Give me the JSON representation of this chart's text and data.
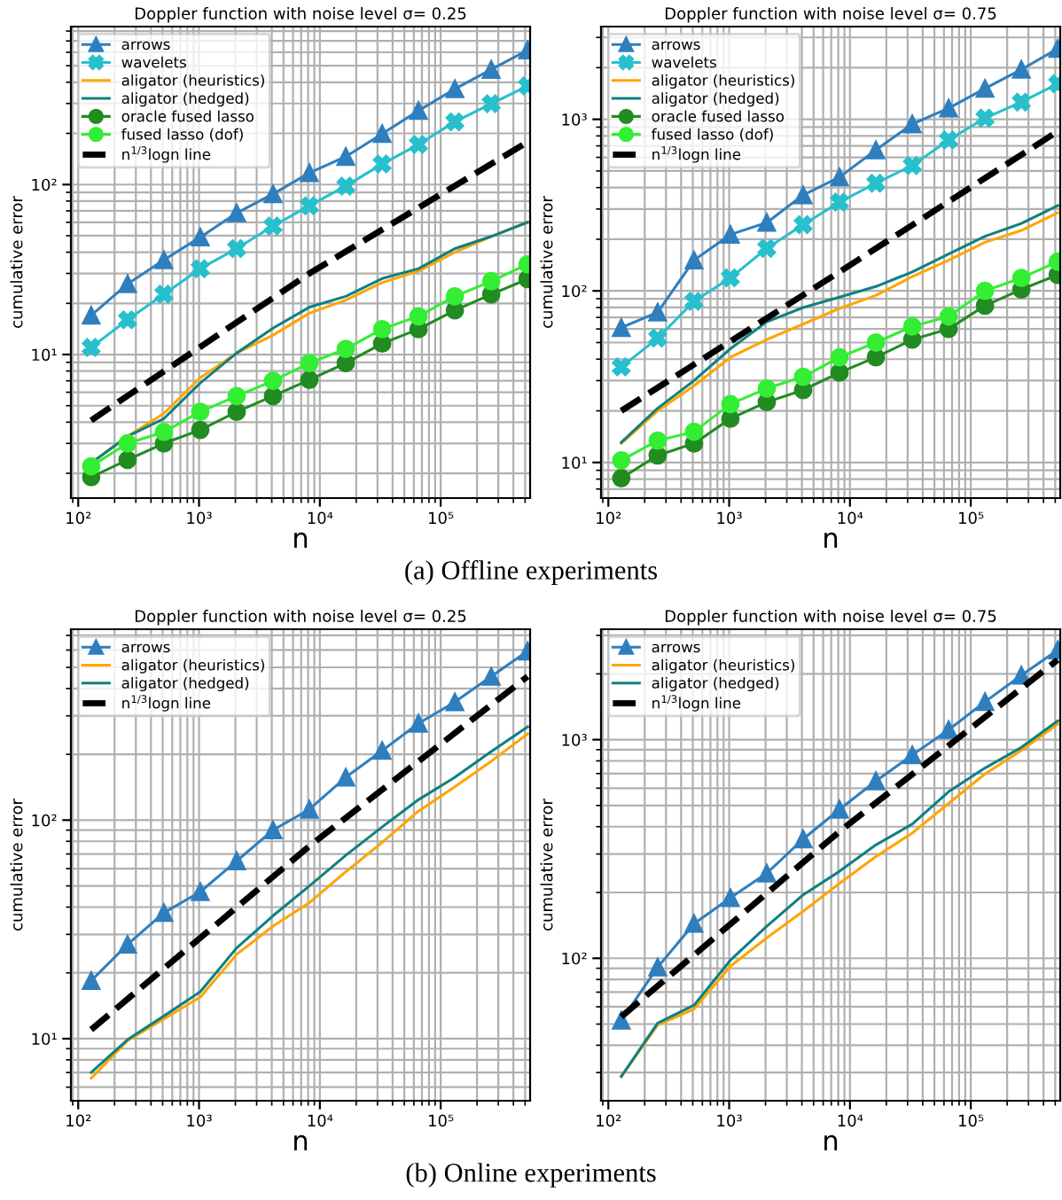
{
  "chart_data": [
    {
      "type": "line",
      "title": "Doppler function with noise level σ= 0.25",
      "xlabel": "n",
      "ylabel": "cumulative error",
      "log": "xy",
      "grid": true,
      "legend": "top left",
      "x": [
        128,
        256,
        512,
        1024,
        2048,
        4096,
        8192,
        16384,
        32768,
        65536,
        131072,
        262144,
        524288
      ],
      "xlim": [
        87,
        550000
      ],
      "ylim": [
        1.43,
        850
      ],
      "xticks": [
        {
          "value": 100,
          "label": "10²"
        },
        {
          "value": 1000,
          "label": "10³"
        },
        {
          "value": 10000,
          "label": "10⁴"
        },
        {
          "value": 100000,
          "label": "10⁵"
        }
      ],
      "yticks": [
        {
          "value": 10,
          "label": "10¹"
        },
        {
          "value": 100,
          "label": "10²"
        }
      ],
      "annotations": [
        "(a) Offline experiments"
      ],
      "series": [
        {
          "name": "arrows",
          "color": "#2f7fbf",
          "marker": "triangle",
          "line_style": "solid",
          "values": [
            17,
            26,
            36,
            49,
            68,
            88,
            117,
            146,
            199,
            272,
            365,
            475,
            617
          ]
        },
        {
          "name": "wavelets",
          "color": "#27c0cc",
          "marker": "cross",
          "line_style": "solid",
          "values": [
            11,
            16,
            22.6,
            32,
            42,
            57,
            75,
            98,
            132,
            172,
            234,
            299,
            380
          ]
        },
        {
          "name": "aligator (heuristics)",
          "color": "#ffa500",
          "marker": "none",
          "line_style": "solid",
          "values": [
            2.3,
            3.3,
            4.5,
            7.3,
            10.2,
            13,
            17.5,
            20.9,
            26.5,
            31,
            40,
            49.5,
            60
          ]
        },
        {
          "name": "aligator (hedged)",
          "color": "#108080",
          "marker": "none",
          "line_style": "solid",
          "values": [
            2.3,
            3.3,
            4.2,
            6.8,
            10.2,
            14.3,
            19,
            22,
            28,
            32,
            42,
            49.5,
            60
          ]
        },
        {
          "name": "oracle fused lasso",
          "color": "#228b22",
          "marker": "circle",
          "line_style": "solid",
          "values": [
            1.9,
            2.4,
            3.0,
            3.6,
            4.6,
            5.7,
            7.1,
            8.9,
            11.6,
            14.1,
            18.2,
            22.6,
            27.8
          ]
        },
        {
          "name": "fused lasso (dof)",
          "color": "#33ee33",
          "marker": "circle",
          "line_style": "solid",
          "values": [
            2.2,
            3.0,
            3.5,
            4.6,
            5.7,
            7.0,
            8.9,
            10.8,
            14.1,
            16.8,
            22,
            27,
            34
          ]
        },
        {
          "name": "n$^{1/3}$logn line",
          "color": "#000000",
          "marker": "none",
          "line_style": "dashed",
          "x": [
            128,
            8192,
            524288
          ],
          "values": [
            4.1,
            30,
            178
          ]
        }
      ]
    },
    {
      "type": "line",
      "title": "Doppler function with noise level σ= 0.75",
      "xlabel": "n",
      "ylabel": "cumulative error",
      "log": "xy",
      "grid": true,
      "legend": "top left",
      "x": [
        128,
        256,
        512,
        1024,
        2048,
        4096,
        8192,
        16384,
        32768,
        65536,
        131072,
        262144,
        524288
      ],
      "xlim": [
        87,
        550000
      ],
      "ylim": [
        6.2,
        3470
      ],
      "xticks": [
        {
          "value": 100,
          "label": "10²"
        },
        {
          "value": 1000,
          "label": "10³"
        },
        {
          "value": 10000,
          "label": "10⁴"
        },
        {
          "value": 100000,
          "label": "10⁵"
        }
      ],
      "yticks": [
        {
          "value": 10,
          "label": "10¹"
        },
        {
          "value": 100,
          "label": "10²"
        },
        {
          "value": 1000,
          "label": "10³"
        }
      ],
      "series": [
        {
          "name": "arrows",
          "color": "#2f7fbf",
          "marker": "triangle",
          "line_style": "solid",
          "values": [
            61,
            75,
            151,
            213,
            250,
            362,
            460,
            662,
            938,
            1160,
            1510,
            1950,
            2580
          ]
        },
        {
          "name": "wavelets",
          "color": "#27c0cc",
          "marker": "cross",
          "line_style": "solid",
          "values": [
            36,
            53,
            87,
            119,
            177,
            243,
            329,
            424,
            538,
            758,
            1016,
            1260,
            1610
          ]
        },
        {
          "name": "aligator (heuristics)",
          "color": "#ffa500",
          "marker": "none",
          "line_style": "solid",
          "values": [
            12.9,
            20,
            28,
            41,
            52,
            64,
            79,
            94,
            121,
            151,
            192,
            225,
            285
          ]
        },
        {
          "name": "aligator (hedged)",
          "color": "#108080",
          "marker": "none",
          "line_style": "solid",
          "values": [
            13.1,
            20.7,
            30,
            46,
            66,
            80,
            92,
            106,
            129,
            164,
            208,
            247,
            314
          ]
        },
        {
          "name": "oracle fused lasso",
          "color": "#228b22",
          "marker": "circle",
          "line_style": "solid",
          "values": [
            8.1,
            11,
            12.9,
            18,
            22.5,
            26.4,
            33.4,
            41,
            52,
            60,
            82,
            102,
            124
          ]
        },
        {
          "name": "fused lasso (dof)",
          "color": "#33ee33",
          "marker": "circle",
          "line_style": "solid",
          "values": [
            10.3,
            13.4,
            15.1,
            21.9,
            27,
            31.6,
            41,
            50,
            62,
            71,
            100,
            119,
            148
          ]
        },
        {
          "name": "n$^{1/3}$logn line",
          "color": "#000000",
          "marker": "none",
          "line_style": "dashed",
          "x": [
            128,
            8192,
            524288
          ],
          "values": [
            20,
            129,
            851
          ]
        }
      ]
    },
    {
      "type": "line",
      "title": "Doppler function with noise level σ= 0.25",
      "xlabel": "n",
      "ylabel": "cumulative error",
      "log": "xy",
      "grid": true,
      "legend": "top left",
      "x": [
        128,
        256,
        512,
        1024,
        2048,
        4096,
        8192,
        16384,
        32768,
        65536,
        131072,
        262144,
        524288
      ],
      "xlim": [
        87,
        550000
      ],
      "ylim": [
        5.2,
        747
      ],
      "xticks": [
        {
          "value": 100,
          "label": "10²"
        },
        {
          "value": 1000,
          "label": "10³"
        },
        {
          "value": 10000,
          "label": "10⁴"
        },
        {
          "value": 100000,
          "label": "10⁵"
        }
      ],
      "yticks": [
        {
          "value": 10,
          "label": "10¹"
        },
        {
          "value": 100,
          "label": "10²"
        }
      ],
      "annotations": [
        "(b) Online experiments"
      ],
      "series": [
        {
          "name": "arrows",
          "color": "#2f7fbf",
          "marker": "triangle",
          "line_style": "solid",
          "values": [
            18.4,
            27,
            37.7,
            47,
            65,
            90,
            112,
            157,
            208,
            277,
            347,
            454,
            593
          ]
        },
        {
          "name": "aligator (heuristics)",
          "color": "#ffa500",
          "marker": "none",
          "line_style": "solid",
          "values": [
            6.6,
            9.8,
            12.3,
            15.5,
            24.3,
            32.7,
            41.9,
            58,
            79,
            110,
            142,
            186,
            248
          ]
        },
        {
          "name": "aligator (hedged)",
          "color": "#108080",
          "marker": "none",
          "line_style": "solid",
          "values": [
            7.0,
            9.9,
            12.7,
            16.4,
            26,
            36.5,
            50,
            69,
            93,
            124,
            157,
            206,
            267
          ]
        },
        {
          "name": "n$^{1/3}$logn line",
          "color": "#000000",
          "marker": "none",
          "line_style": "dashed",
          "x": [
            128,
            8192,
            524288
          ],
          "values": [
            11,
            76,
            454
          ]
        }
      ]
    },
    {
      "type": "line",
      "title": "Doppler function with noise level σ= 0.75",
      "xlabel": "n",
      "ylabel": "cumulative error",
      "log": "xy",
      "grid": true,
      "legend": "top left",
      "x": [
        128,
        256,
        512,
        1024,
        2048,
        4096,
        8192,
        16384,
        32768,
        65536,
        131072,
        262144,
        524288
      ],
      "xlim": [
        87,
        550000
      ],
      "ylim": [
        22.3,
        3200
      ],
      "xticks": [
        {
          "value": 100,
          "label": "10²"
        },
        {
          "value": 1000,
          "label": "10³"
        },
        {
          "value": 10000,
          "label": "10⁴"
        },
        {
          "value": 100000,
          "label": "10⁵"
        }
      ],
      "yticks": [
        {
          "value": 100,
          "label": "10²"
        },
        {
          "value": 1000,
          "label": "10³"
        }
      ],
      "series": [
        {
          "name": "arrows",
          "color": "#2f7fbf",
          "marker": "triangle",
          "line_style": "solid",
          "values": [
            52,
            91,
            144,
            189,
            245,
            351,
            480,
            647,
            851,
            1110,
            1490,
            1970,
            2570
          ]
        },
        {
          "name": "aligator (heuristics)",
          "color": "#ffa500",
          "marker": "none",
          "line_style": "solid",
          "values": [
            28.8,
            49.5,
            58.6,
            92,
            124,
            164,
            220,
            292,
            374,
            511,
            697,
            893,
            1180
          ]
        },
        {
          "name": "aligator (hedged)",
          "color": "#108080",
          "marker": "none",
          "line_style": "solid",
          "values": [
            28.8,
            50.5,
            61,
            98,
            140,
            195,
            250,
            330,
            411,
            578,
            742,
            922,
            1220
          ]
        },
        {
          "name": "n$^{1/3}$logn line",
          "color": "#000000",
          "marker": "none",
          "line_style": "dashed",
          "x": [
            128,
            8192,
            524288
          ],
          "values": [
            54,
            380,
            2320
          ]
        }
      ]
    }
  ]
}
